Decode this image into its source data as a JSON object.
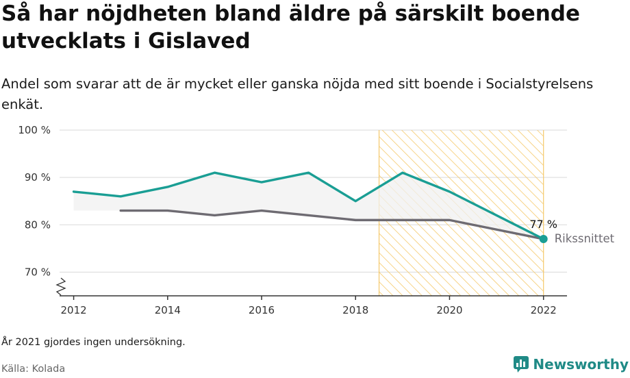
{
  "title": "Så har nöjdheten bland äldre på särskilt boende utvecklats i Gislaved",
  "subtitle": "Andel som svarar att de är mycket eller ganska nöjda med sitt boende i Socialstyrelsens enkät.",
  "note": "År 2021 gjordes ingen undersökning.",
  "source": "Källa: Kolada",
  "brand": "Newsworthy",
  "chart_data": {
    "type": "line",
    "title": "",
    "xlabel": "",
    "ylabel": "",
    "ylim": [
      65,
      100
    ],
    "xlim": [
      2011.7,
      2022.5
    ],
    "y_ticks": [
      70,
      80,
      90,
      100
    ],
    "y_tick_labels": [
      "70 %",
      "80 %",
      "90 %",
      "100 %"
    ],
    "x_ticks": [
      2012,
      2014,
      2016,
      2018,
      2020,
      2022
    ],
    "x_tick_labels": [
      "2012",
      "2014",
      "2016",
      "2018",
      "2020",
      "2022"
    ],
    "grid": true,
    "highlight_range": [
      2018.5,
      2022
    ],
    "series": [
      {
        "name": "",
        "color": "#1a9e94",
        "x": [
          2012,
          2013,
          2014,
          2015,
          2016,
          2017,
          2018,
          2019,
          2020,
          2022
        ],
        "y": [
          87,
          86,
          88,
          91,
          89,
          91,
          85,
          91,
          87,
          77
        ]
      },
      {
        "name": "Rikssnittet",
        "color": "#6e6b72",
        "x": [
          2013,
          2014,
          2015,
          2016,
          2017,
          2018,
          2019,
          2020,
          2022
        ],
        "y": [
          83,
          83,
          82,
          83,
          82,
          81,
          81,
          81,
          77
        ]
      }
    ],
    "annotations": [
      {
        "text": "77 %",
        "x": 2022,
        "y": 77
      }
    ],
    "colors": {
      "highlight_stroke": "#f5c96a",
      "grid": "#d9d9d9",
      "axis": "#333333",
      "band_fill": "#f0f0f0"
    }
  }
}
